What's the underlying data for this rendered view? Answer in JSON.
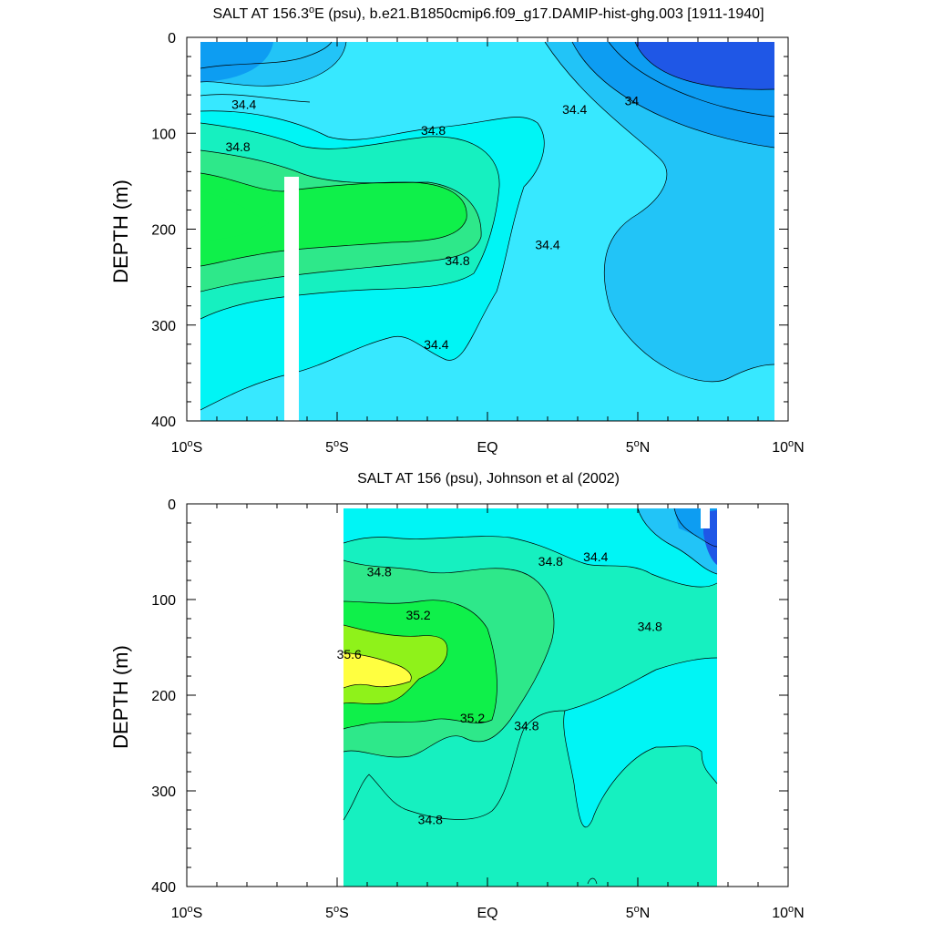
{
  "chart_data": [
    {
      "type": "contour",
      "title": "SALT AT 156.3°E (psu), b.e21.B1850cmip6.f09_g17.DAMIP-hist-ghg.003 [1911-1940]",
      "title_parts": {
        "pre": "SALT AT 156.3",
        "sup": "o",
        "post": "E (psu), b.e21.B1850cmip6.f09_g17.DAMIP-hist-ghg.003 [1911-1940]"
      },
      "ylabel": "DEPTH (m)",
      "xlim": [
        -10,
        10
      ],
      "ylim": [
        0,
        400
      ],
      "y_inverted": true,
      "xticks": [
        {
          "deg": "10",
          "hemi": "S",
          "value": -10
        },
        {
          "deg": "5",
          "hemi": "S",
          "value": -5
        },
        {
          "deg": "",
          "hemi": "EQ",
          "value": 0
        },
        {
          "deg": "5",
          "hemi": "N",
          "value": 5
        },
        {
          "deg": "10",
          "hemi": "N",
          "value": 10
        }
      ],
      "yticks": [
        "0",
        "100",
        "200",
        "300",
        "400"
      ],
      "contour_labels": [
        {
          "text": "34.4",
          "lon": -8.1,
          "depth": 70
        },
        {
          "text": "34.8",
          "lon": -8.3,
          "depth": 114
        },
        {
          "text": "34.8",
          "lon": -1.8,
          "depth": 97
        },
        {
          "text": "34.8",
          "lon": -1.0,
          "depth": 233
        },
        {
          "text": "34.4",
          "lon": -1.7,
          "depth": 320
        },
        {
          "text": "34.4",
          "lon": 2.0,
          "depth": 216
        },
        {
          "text": "34.4",
          "lon": 2.9,
          "depth": 75
        },
        {
          "text": "34",
          "lon": 4.8,
          "depth": 66
        }
      ]
    },
    {
      "type": "contour",
      "title": "SALT AT 156 (psu), Johnson et al (2002)",
      "ylabel": "DEPTH (m)",
      "xlim": [
        -10,
        10
      ],
      "ylim": [
        0,
        400
      ],
      "y_inverted": true,
      "data_extent_lon": [
        -5,
        8
      ],
      "xticks": [
        {
          "deg": "10",
          "hemi": "S",
          "value": -10
        },
        {
          "deg": "5",
          "hemi": "S",
          "value": -5
        },
        {
          "deg": "",
          "hemi": "EQ",
          "value": 0
        },
        {
          "deg": "5",
          "hemi": "N",
          "value": 5
        },
        {
          "deg": "10",
          "hemi": "N",
          "value": 10
        }
      ],
      "yticks": [
        "0",
        "100",
        "200",
        "300",
        "400"
      ],
      "contour_labels": [
        {
          "text": "34.8",
          "lon": -3.6,
          "depth": 71
        },
        {
          "text": "34.8",
          "lon": 2.1,
          "depth": 60
        },
        {
          "text": "34.4",
          "lon": 3.6,
          "depth": 55
        },
        {
          "text": "35.2",
          "lon": -2.3,
          "depth": 116
        },
        {
          "text": "35.6",
          "lon": -4.6,
          "depth": 157
        },
        {
          "text": "35.2",
          "lon": -0.5,
          "depth": 224
        },
        {
          "text": "34.8",
          "lon": 1.3,
          "depth": 232
        },
        {
          "text": "34.8",
          "lon": 5.4,
          "depth": 128
        },
        {
          "text": "34.8",
          "lon": -1.9,
          "depth": 330
        }
      ]
    }
  ],
  "colors": {
    "s34_0": "#1f57e6",
    "s34_2": "#0d9df2",
    "s34_4": "#22c4f7",
    "s34_6": "#37e8ff",
    "s34_8": "#00f5f5",
    "s35_0": "#16f0c0",
    "s35_2": "#2ee88a",
    "s35_4": "#0ff04a",
    "s35_6": "#8ff21a",
    "s35_8": "#ffff40"
  }
}
